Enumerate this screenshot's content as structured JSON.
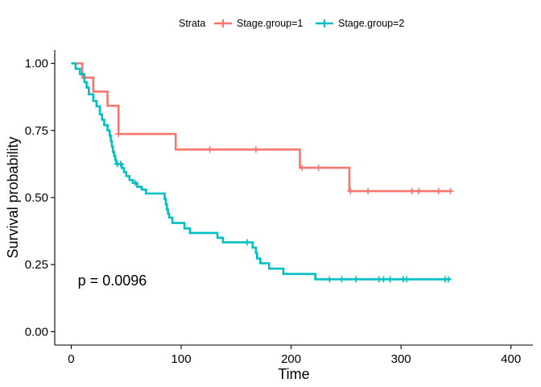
{
  "chart_data": {
    "type": "line",
    "subtype": "kaplan-meier step",
    "xlabel": "Time",
    "ylabel": "Survival probability",
    "xlim": [
      -15,
      420
    ],
    "ylim": [
      -0.05,
      1.05
    ],
    "xticks": [
      0,
      100,
      200,
      300,
      400
    ],
    "xtick_labels": [
      "0",
      "100",
      "200",
      "300",
      "400"
    ],
    "yticks": [
      0,
      0.25,
      0.5,
      0.75,
      1.0
    ],
    "ytick_labels": [
      "0.00",
      "0.25",
      "0.50",
      "0.75",
      "1.00"
    ],
    "grid": false,
    "legend": {
      "title": "Strata",
      "position": "top",
      "entries": [
        "Stage.group=1",
        "Stage.group=2"
      ]
    },
    "annotation": "p = 0.0096",
    "annotation_position": {
      "x": 6,
      "y": 0.19
    },
    "series": [
      {
        "name": "Stage.group=1",
        "color": "#F8766D",
        "steps": [
          [
            0,
            1.0
          ],
          [
            10,
            0.947
          ],
          [
            20,
            0.895
          ],
          [
            33,
            0.842
          ],
          [
            43,
            0.737
          ],
          [
            95,
            0.679
          ],
          [
            208,
            0.611
          ],
          [
            253,
            0.524
          ],
          [
            345,
            0.524
          ]
        ],
        "censored": [
          [
            43,
            0.737
          ],
          [
            126,
            0.679
          ],
          [
            168,
            0.679
          ],
          [
            210,
            0.611
          ],
          [
            225,
            0.611
          ],
          [
            254,
            0.524
          ],
          [
            270,
            0.524
          ],
          [
            310,
            0.524
          ],
          [
            316,
            0.524
          ],
          [
            334,
            0.524
          ],
          [
            345,
            0.524
          ]
        ]
      },
      {
        "name": "Stage.group=2",
        "color": "#00BFC4",
        "steps": [
          [
            0,
            1.0
          ],
          [
            4,
            0.98
          ],
          [
            8,
            0.96
          ],
          [
            12,
            0.93
          ],
          [
            14,
            0.91
          ],
          [
            16,
            0.885
          ],
          [
            20,
            0.86
          ],
          [
            23,
            0.84
          ],
          [
            26,
            0.81
          ],
          [
            28,
            0.79
          ],
          [
            30,
            0.77
          ],
          [
            33,
            0.75
          ],
          [
            35,
            0.73
          ],
          [
            36,
            0.71
          ],
          [
            37,
            0.69
          ],
          [
            38,
            0.67
          ],
          [
            39,
            0.655
          ],
          [
            40,
            0.64
          ],
          [
            41,
            0.625
          ],
          [
            46,
            0.61
          ],
          [
            48,
            0.595
          ],
          [
            50,
            0.58
          ],
          [
            53,
            0.565
          ],
          [
            56,
            0.555
          ],
          [
            60,
            0.54
          ],
          [
            64,
            0.53
          ],
          [
            68,
            0.515
          ],
          [
            85,
            0.495
          ],
          [
            86,
            0.475
          ],
          [
            87,
            0.455
          ],
          [
            88,
            0.44
          ],
          [
            89,
            0.425
          ],
          [
            92,
            0.405
          ],
          [
            103,
            0.385
          ],
          [
            108,
            0.368
          ],
          [
            133,
            0.35
          ],
          [
            138,
            0.333
          ],
          [
            165,
            0.313
          ],
          [
            168,
            0.293
          ],
          [
            169,
            0.273
          ],
          [
            172,
            0.255
          ],
          [
            180,
            0.235
          ],
          [
            193,
            0.215
          ],
          [
            222,
            0.195
          ],
          [
            345,
            0.195
          ]
        ],
        "censored": [
          [
            42,
            0.625
          ],
          [
            45,
            0.625
          ],
          [
            58,
            0.555
          ],
          [
            160,
            0.333
          ],
          [
            235,
            0.195
          ],
          [
            246,
            0.195
          ],
          [
            259,
            0.195
          ],
          [
            280,
            0.195
          ],
          [
            284,
            0.195
          ],
          [
            290,
            0.195
          ],
          [
            302,
            0.195
          ],
          [
            305,
            0.195
          ],
          [
            340,
            0.195
          ],
          [
            343,
            0.195
          ]
        ]
      }
    ]
  }
}
